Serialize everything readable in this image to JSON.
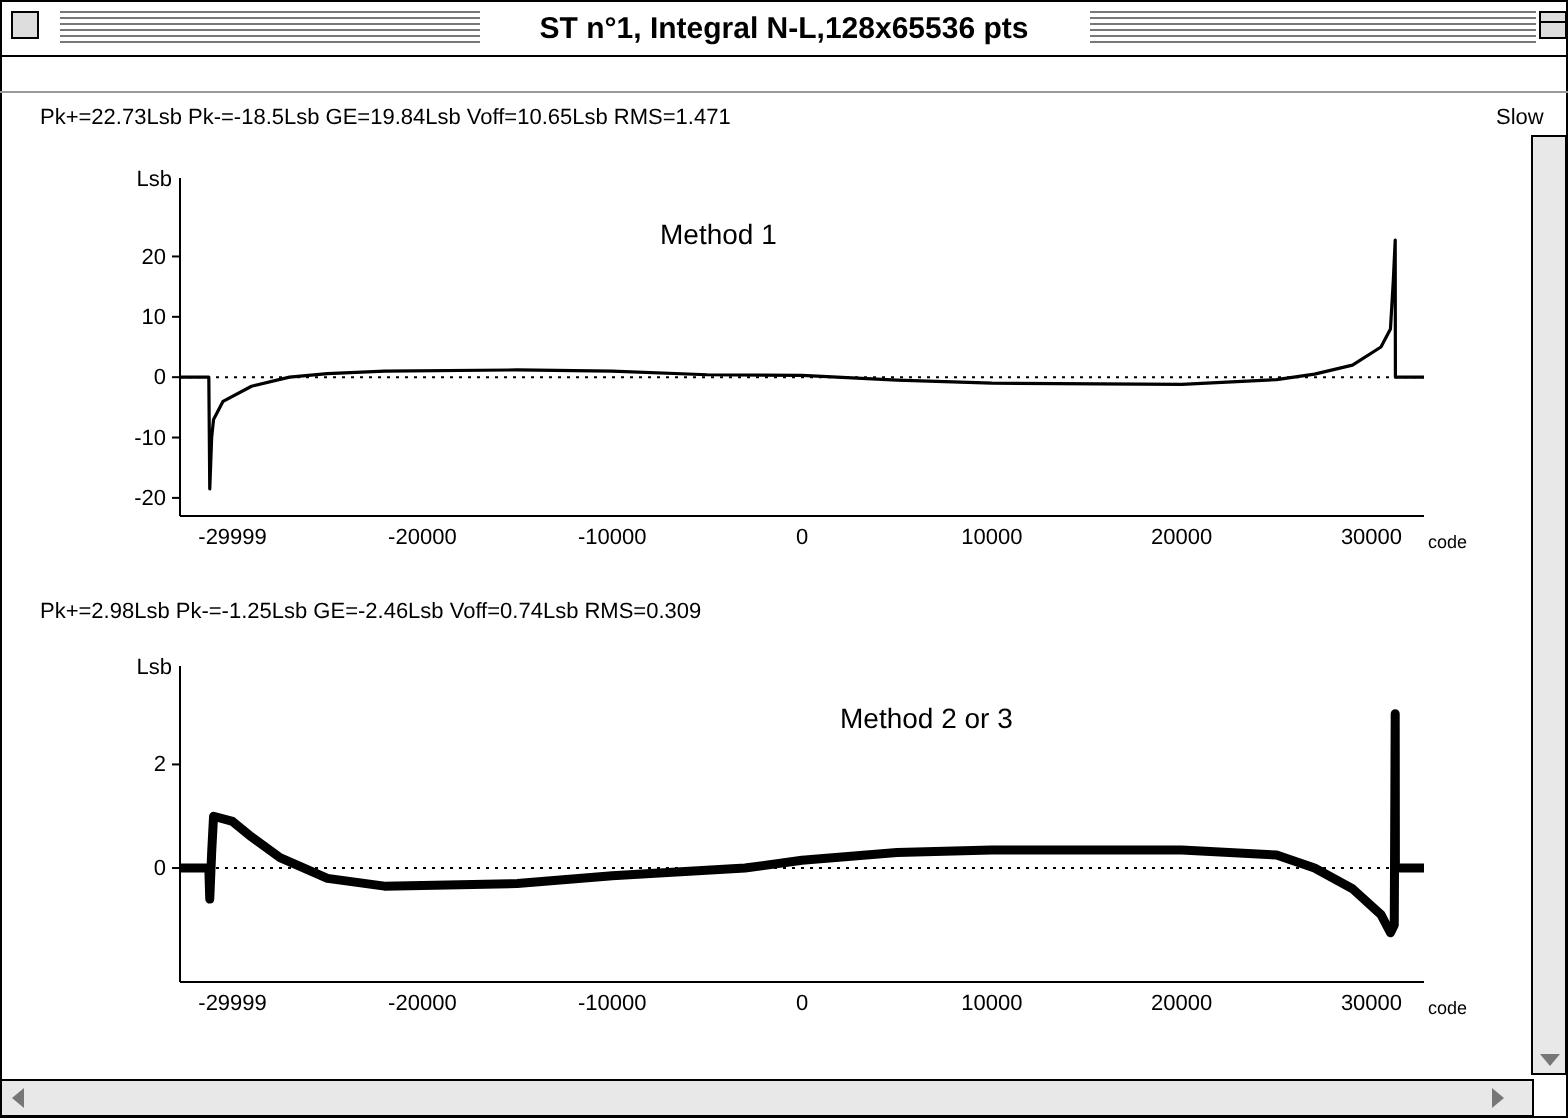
{
  "chart_data": [
    {
      "type": "line",
      "title": "ST n°1, Integral N-L,128x65536 pts",
      "subtitle": "Pk+=22.73Lsb  Pk-=-18.5Lsb  GE=19.84Lsb  Voff=10.65Lsb  RMS=1.471",
      "annotations": [
        "Method 1",
        "Slow"
      ],
      "xlabel": "code",
      "ylabel": "Lsb",
      "xlim": [
        -32768,
        32767
      ],
      "xticks": [
        -29999,
        -20000,
        -10000,
        0,
        10000,
        20000,
        30000
      ],
      "ylim": [
        -23,
        33
      ],
      "yticks": [
        -20,
        -10,
        0,
        10,
        20
      ],
      "ref_lines": [
        {
          "axis": "y",
          "value": 0,
          "label": null,
          "color": "#000000",
          "line_style": "dotted"
        }
      ],
      "series": [
        {
          "color": "#000000",
          "x": [
            -32768,
            -31250,
            -31200,
            -31100,
            -31000,
            -30500,
            -29000,
            -27000,
            -25000,
            -22000,
            -15000,
            -10000,
            -5000,
            0,
            5000,
            10000,
            20000,
            25000,
            27000,
            29000,
            30500,
            31000,
            31150,
            31250,
            31260,
            32767
          ],
          "values": [
            0,
            0,
            -18.5,
            -10,
            -7,
            -4,
            -1.5,
            0,
            0.6,
            1,
            1.2,
            1,
            0.4,
            0.3,
            -0.5,
            -1,
            -1.2,
            -0.4,
            0.5,
            2,
            5,
            8,
            16,
            22.73,
            0,
            0
          ]
        }
      ]
    },
    {
      "type": "line",
      "subtitle": "Pk+=2.98Lsb  Pk-=-1.25Lsb  GE=-2.46Lsb  Voff=0.74Lsb  RMS=0.309",
      "annotations": [
        "Method 2 or 3"
      ],
      "xlabel": "code",
      "ylabel": "Lsb",
      "xlim": [
        -32768,
        32767
      ],
      "xticks": [
        -29999,
        -20000,
        -10000,
        0,
        10000,
        20000,
        30000
      ],
      "ylim": [
        -2.2,
        3.9
      ],
      "yticks": [
        0,
        2
      ],
      "ref_lines": [
        {
          "axis": "y",
          "value": 0,
          "label": null,
          "color": "#000000",
          "line_style": "dotted"
        }
      ],
      "series": [
        {
          "color": "#000000",
          "x": [
            -32768,
            -31250,
            -31200,
            -31100,
            -31000,
            -30000,
            -29000,
            -27500,
            -25000,
            -22000,
            -15000,
            -10000,
            -3000,
            0,
            5000,
            10000,
            20000,
            25000,
            27000,
            29000,
            30500,
            31000,
            31200,
            31250,
            31260,
            32767
          ],
          "values": [
            0,
            0,
            -0.6,
            0.3,
            1,
            0.9,
            0.6,
            0.2,
            -0.2,
            -0.35,
            -0.3,
            -0.15,
            0,
            0.15,
            0.3,
            0.35,
            0.35,
            0.25,
            0,
            -0.4,
            -0.9,
            -1.25,
            -1.1,
            2.98,
            0,
            0
          ]
        }
      ]
    }
  ]
}
